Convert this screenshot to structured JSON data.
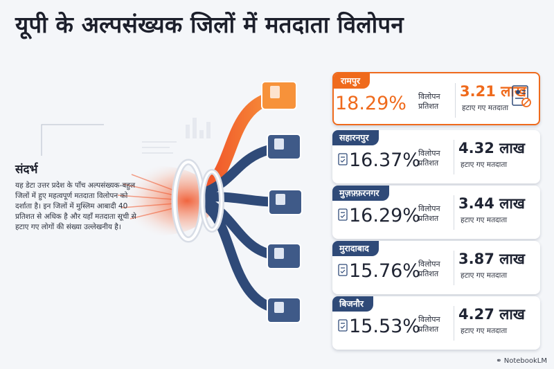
{
  "title": "यूपी के अल्पसंख्यक जिलों में मतदाता विलोपन",
  "context": {
    "heading": "संदर्भ",
    "body": "यह डेटा उत्तर प्रदेश के पाँच अल्पसंख्यक-बहुल जिलों में हुए महत्वपूर्ण मतदाता विलोपन को दर्शाता है। इन जिलों में मुस्लिम आबादी 40 प्रतिशत से अधिक है और यहाँ मतदाता सूची से हटाए गए लोगों की संख्या उल्लेखनीय है।"
  },
  "colors": {
    "accent": "#ef6a1c",
    "navy": "#2f4a78",
    "background": "#f4f6f9"
  },
  "chart_data": {
    "type": "table",
    "pct_label": "विलोपन प्रतिशत",
    "removed_label": "हटाए गए मतदाता",
    "rows": [
      {
        "district": "रामपुर",
        "pct": "18.29%",
        "removed": "3.21 लाख",
        "highlight": true
      },
      {
        "district": "सहारनपुर",
        "pct": "16.37%",
        "removed": "4.32 लाख",
        "highlight": false
      },
      {
        "district": "मुज़फ़्फ़रनगर",
        "pct": "16.29%",
        "removed": "3.44 लाख",
        "highlight": false
      },
      {
        "district": "मुरादाबाद",
        "pct": "15.76%",
        "removed": "3.87 लाख",
        "highlight": false
      },
      {
        "district": "बिजनौर",
        "pct": "15.53%",
        "removed": "4.27 लाख",
        "highlight": false
      }
    ]
  },
  "watermark": "NotebookLM"
}
